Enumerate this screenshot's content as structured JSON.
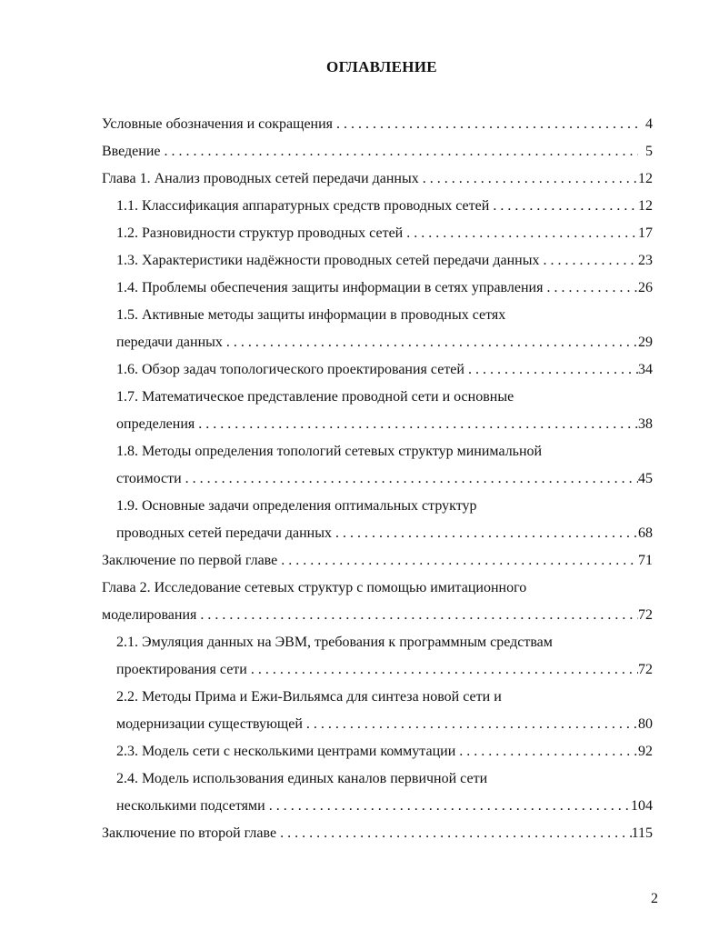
{
  "title": "ОГЛАВЛЕНИЕ",
  "entries": [
    {
      "level": 0,
      "lines": [
        "Условные обозначения и сокращения"
      ],
      "page": "4"
    },
    {
      "level": 0,
      "lines": [
        "Введение"
      ],
      "page": "5"
    },
    {
      "level": 0,
      "lines": [
        "Глава 1. Анализ проводных сетей передачи данных"
      ],
      "page": "12"
    },
    {
      "level": 1,
      "lines": [
        "1.1. Классификация аппаратурных средств проводных сетей"
      ],
      "page": "12"
    },
    {
      "level": 1,
      "lines": [
        "1.2. Разновидности структур проводных сетей"
      ],
      "page": "17"
    },
    {
      "level": 1,
      "lines": [
        "1.3. Характеристики надёжности проводных сетей передачи данных"
      ],
      "page": "23"
    },
    {
      "level": 1,
      "lines": [
        "1.4. Проблемы обеспечения защиты информации в сетях управления"
      ],
      "page": "26"
    },
    {
      "level": 1,
      "lines": [
        "1.5. Активные методы защиты информации в проводных сетях",
        "передачи данных"
      ],
      "page": "29"
    },
    {
      "level": 1,
      "lines": [
        "1.6. Обзор задач топологического проектирования сетей"
      ],
      "page": "34"
    },
    {
      "level": 1,
      "lines": [
        "1.7. Математическое представление проводной сети и основные",
        "определения"
      ],
      "page": "38"
    },
    {
      "level": 1,
      "lines": [
        "1.8. Методы определения топологий сетевых структур минимальной",
        "стоимости"
      ],
      "page": "45"
    },
    {
      "level": 1,
      "lines": [
        "1.9. Основные задачи определения оптимальных структур",
        "проводных сетей передачи данных"
      ],
      "page": "68"
    },
    {
      "level": 0,
      "lines": [
        "Заключение по первой главе"
      ],
      "page": "71"
    },
    {
      "level": 0,
      "lines": [
        "Глава 2. Исследование сетевых структур с помощью имитационного",
        "моделирования"
      ],
      "page": "72"
    },
    {
      "level": 1,
      "lines": [
        "2.1. Эмуляция данных на ЭВМ, требования к программным средствам",
        "проектирования сети"
      ],
      "page": "72"
    },
    {
      "level": 1,
      "lines": [
        "2.2. Методы Прима и Ежи-Вильямса для синтеза новой сети и",
        "модернизации существующей"
      ],
      "page": "80"
    },
    {
      "level": 1,
      "lines": [
        "2.3. Модель сети с несколькими центрами коммутации"
      ],
      "page": "92"
    },
    {
      "level": 1,
      "lines": [
        "2.4. Модель использования единых каналов первичной сети",
        "несколькими подсетями"
      ],
      "page": "104"
    },
    {
      "level": 0,
      "lines": [
        "Заключение по второй главе"
      ],
      "page": "115"
    }
  ],
  "page_number": "2"
}
